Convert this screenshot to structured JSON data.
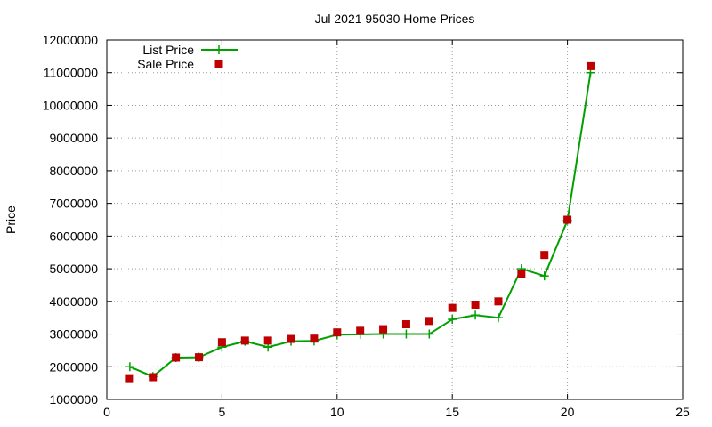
{
  "chart_data": {
    "type": "line",
    "title": "Jul 2021 95030 Home Prices",
    "xlabel": "",
    "ylabel": "Price",
    "xlim": [
      0,
      25
    ],
    "ylim": [
      1000000,
      12000000
    ],
    "x_ticks": [
      "0",
      "5",
      "10",
      "15",
      "20",
      "25"
    ],
    "y_ticks": [
      "1000000",
      "2000000",
      "3000000",
      "4000000",
      "5000000",
      "6000000",
      "7000000",
      "8000000",
      "9000000",
      "10000000",
      "11000000",
      "12000000"
    ],
    "grid": true,
    "legend_position": "top-left",
    "series": [
      {
        "name": "List Price",
        "kind": "line-plus",
        "color": "#00a000",
        "x": [
          1,
          2,
          3,
          4,
          5,
          6,
          7,
          8,
          9,
          10,
          11,
          12,
          13,
          14,
          15,
          16,
          17,
          18,
          19,
          20,
          21
        ],
        "y": [
          2000000,
          1700000,
          2280000,
          2290000,
          2600000,
          2780000,
          2600000,
          2780000,
          2790000,
          2980000,
          2990000,
          3000000,
          3000000,
          3000000,
          3450000,
          3580000,
          3500000,
          5000000,
          4780000,
          6480000,
          11000000
        ]
      },
      {
        "name": "Sale Price",
        "kind": "square",
        "color": "#c00000",
        "x": [
          1,
          2,
          3,
          4,
          5,
          6,
          7,
          8,
          9,
          10,
          11,
          12,
          13,
          14,
          15,
          16,
          17,
          18,
          19,
          20,
          21
        ],
        "y": [
          1650000,
          1680000,
          2280000,
          2290000,
          2750000,
          2800000,
          2800000,
          2850000,
          2860000,
          3050000,
          3100000,
          3150000,
          3300000,
          3400000,
          3800000,
          3900000,
          4000000,
          4850000,
          5420000,
          6500000,
          11200000
        ]
      }
    ]
  }
}
